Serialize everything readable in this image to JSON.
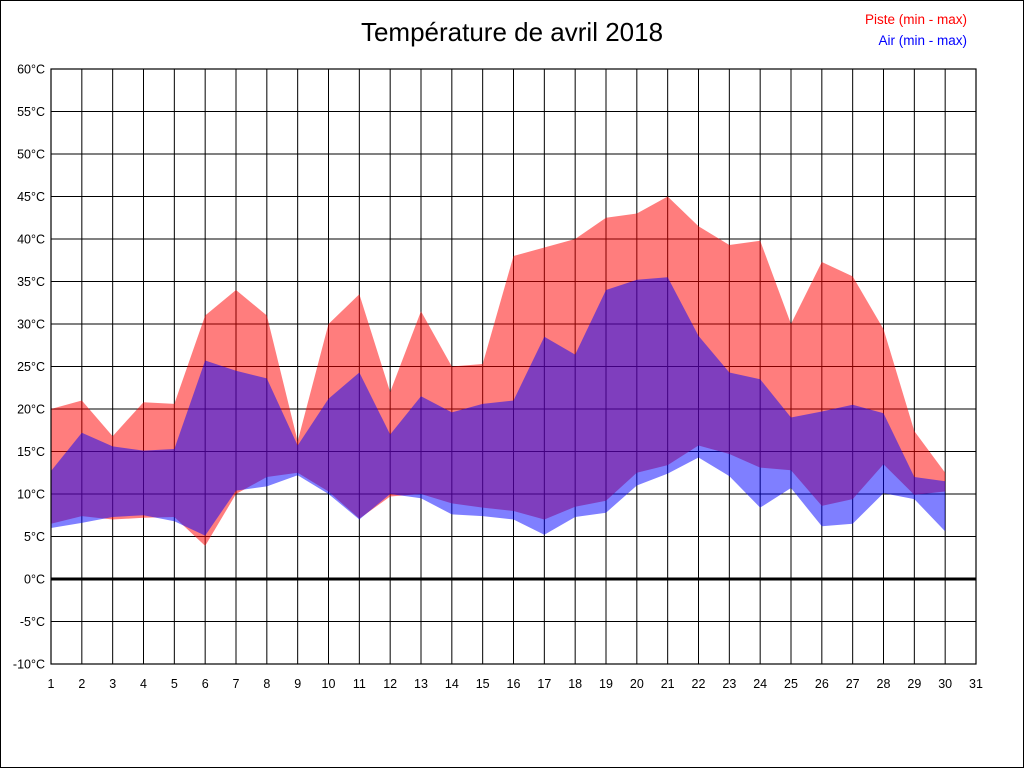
{
  "title": "Température de avril 2018",
  "legend": {
    "piste_label": "Piste (min - max)",
    "air_label": "Air (min - max)"
  },
  "colors": {
    "piste": "#ff0000",
    "air": "#0000ff",
    "grid": "#000000",
    "zero_line": "#000000",
    "text": "#000000"
  },
  "chart_data": {
    "type": "area",
    "title": "Température de avril 2018",
    "xlabel": "",
    "ylabel": "",
    "xlim": [
      1,
      31
    ],
    "ylim": [
      -10,
      60
    ],
    "ytick_step": 5,
    "ytick_suffix": "°C",
    "grid": true,
    "legend_position": "top-right",
    "x_days": [
      1,
      2,
      3,
      4,
      5,
      6,
      7,
      8,
      9,
      10,
      11,
      12,
      13,
      14,
      15,
      16,
      17,
      18,
      19,
      20,
      21,
      22,
      23,
      24,
      25,
      26,
      27,
      28,
      29,
      30
    ],
    "series": [
      {
        "name": "Piste (min - max)",
        "color": "#ff0000",
        "opacity": 0.51,
        "max": [
          20,
          21,
          16.8,
          20.8,
          20.6,
          31,
          34,
          31,
          16.2,
          30,
          33.5,
          22,
          31.5,
          25,
          25.3,
          38,
          39,
          40,
          42.5,
          43,
          45,
          41.5,
          39.3,
          39.8,
          30,
          37.3,
          35.6,
          29.4,
          17.4,
          12.5
        ],
        "min": [
          6.5,
          7.4,
          7,
          7.2,
          7.3,
          3.9,
          10,
          12,
          12.5,
          10.3,
          7.1,
          9.7,
          10,
          8.9,
          8.4,
          8,
          7,
          8.5,
          9.2,
          12.5,
          13.4,
          15.7,
          14.7,
          13.1,
          12.8,
          8.6,
          9.4,
          13.5,
          9.9,
          10.3
        ]
      },
      {
        "name": "Air (min - max)",
        "color": "#0000ff",
        "opacity": 0.5,
        "max": [
          12.7,
          17.2,
          15.6,
          15.1,
          15.3,
          25.7,
          24.5,
          23.6,
          15.7,
          21.2,
          24.3,
          17,
          21.5,
          19.6,
          20.6,
          21,
          28.5,
          26.4,
          34,
          35.2,
          35.5,
          28.6,
          24.3,
          23.5,
          19,
          19.7,
          20.5,
          19.5,
          12,
          11.5
        ],
        "min": [
          6,
          6.6,
          7.3,
          7.5,
          6.8,
          5.1,
          10.4,
          10.9,
          12.2,
          10,
          7,
          10,
          9.5,
          7.6,
          7.4,
          7,
          5.2,
          7.3,
          7.8,
          11,
          12.4,
          14.3,
          12.1,
          8.4,
          10.7,
          6.2,
          6.5,
          10.1,
          9.4,
          5.6
        ]
      }
    ]
  }
}
